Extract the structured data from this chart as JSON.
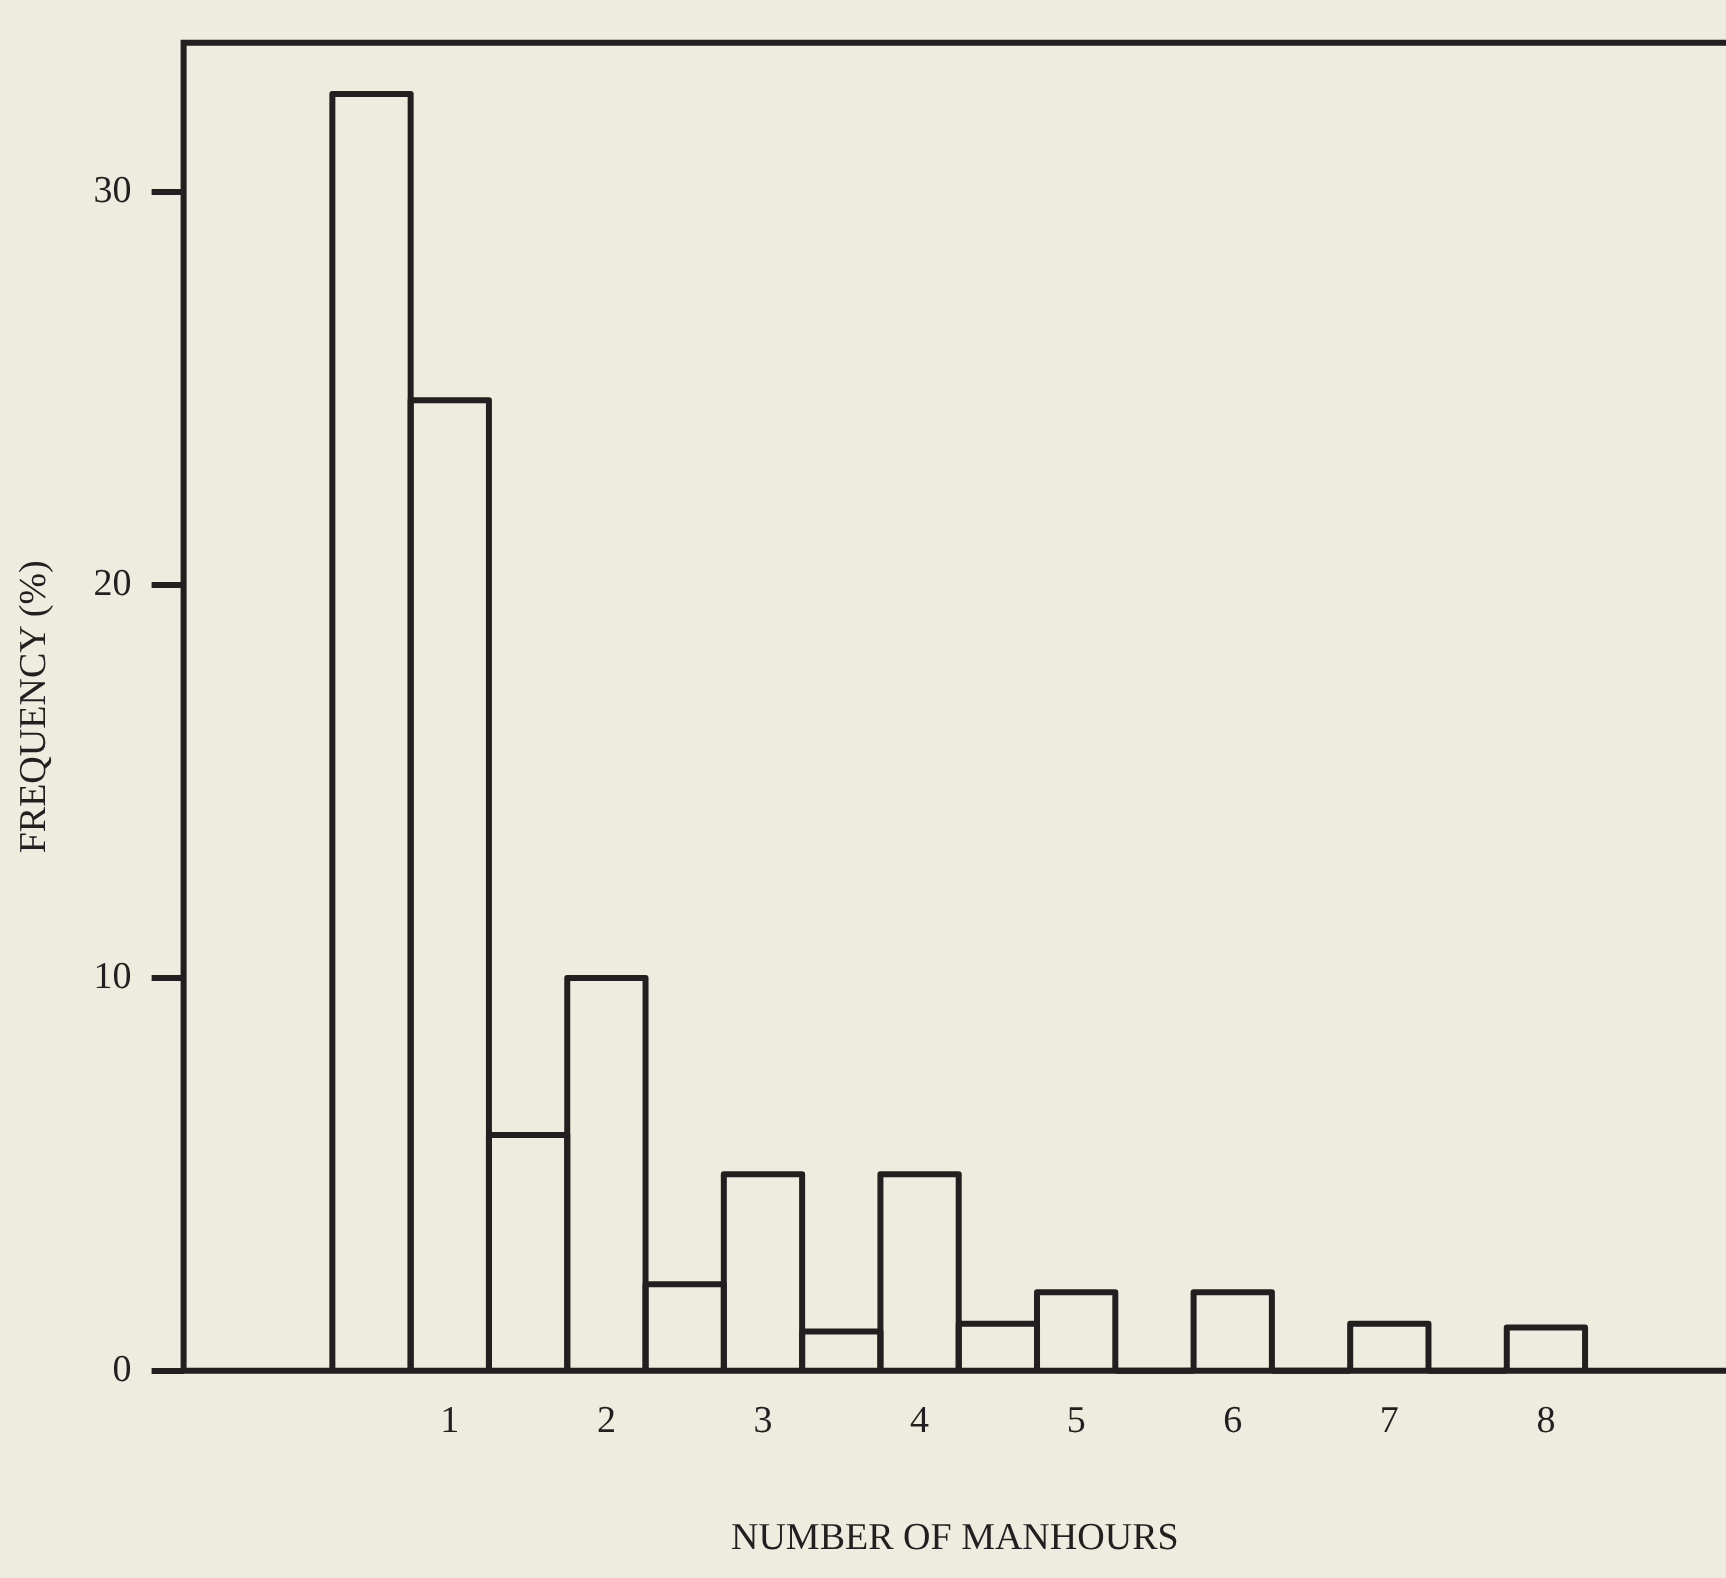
{
  "chart_data": {
    "type": "histogram",
    "xlabel": "NUMBER OF MANHOURS",
    "ylabel": "FREQUENCY (%)",
    "bins": [
      0.25,
      0.75,
      1.25,
      1.75,
      2.25,
      2.75,
      3.25,
      3.75,
      4.25,
      4.75,
      5.25,
      5.75,
      6.25,
      6.75,
      7.25,
      7.75,
      8.25
    ],
    "values": [
      32.5,
      24.7,
      6,
      10,
      2.2,
      5,
      1,
      5,
      1.2,
      2,
      0,
      2,
      0,
      1.2,
      0,
      1.1
    ],
    "color": "#231f20",
    "xlim": [
      -0.7,
      9.15
    ],
    "xticks": [
      1,
      2,
      3,
      4,
      5,
      6,
      7,
      8
    ],
    "ylim": [
      0,
      33.8
    ],
    "yticks": [
      0,
      10,
      20,
      30
    ],
    "grid": false,
    "legend": false
  }
}
